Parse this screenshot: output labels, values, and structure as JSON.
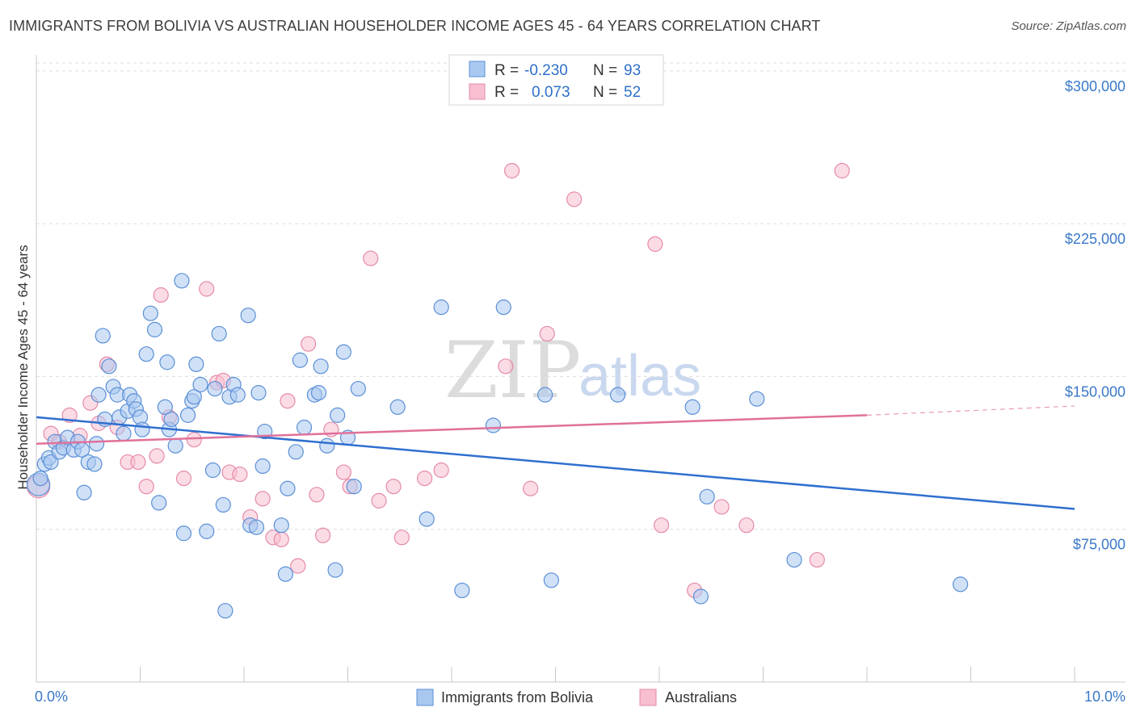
{
  "header": {
    "title": "IMMIGRANTS FROM BOLIVIA VS AUSTRALIAN HOUSEHOLDER INCOME AGES 45 - 64 YEARS CORRELATION CHART",
    "source": "Source: ZipAtlas.com"
  },
  "watermark": {
    "zip": "ZIP",
    "atlas": "atlas"
  },
  "legend_top": {
    "rows": [
      {
        "r_label": "R =",
        "r_value": "-0.230",
        "n_label": "N =",
        "n_value": "93"
      },
      {
        "r_label": "R =",
        "r_value": "0.073",
        "n_label": "N =",
        "n_value": "52"
      }
    ]
  },
  "legend_bottom": {
    "items": [
      {
        "label": "Immigrants from Bolivia"
      },
      {
        "label": "Australians"
      }
    ]
  },
  "colors": {
    "blue_fill": "#a9c8f0",
    "blue_stroke": "#5b8fd6",
    "blue_line": "#2f6fcf",
    "pink_fill": "#f7bfd0",
    "pink_stroke": "#e58aa8",
    "pink_line": "#e0709a",
    "tick_text": "#3a78c9",
    "grid": "#dddddd"
  },
  "chart_data": {
    "type": "scatter",
    "title": "IMMIGRANTS FROM BOLIVIA VS AUSTRALIAN HOUSEHOLDER INCOME AGES 45 - 64 YEARS CORRELATION CHART",
    "xlabel": "",
    "ylabel": "Householder Income Ages 45 - 64 years",
    "xlim": [
      0,
      10
    ],
    "ylim": [
      0,
      315000
    ],
    "x_tick_labels": [
      "0.0%",
      "10.0%"
    ],
    "y_ticks": [
      75000,
      150000,
      225000,
      300000
    ],
    "y_tick_labels": [
      "$75,000",
      "$150,000",
      "$225,000",
      "$300,000"
    ],
    "grid": true,
    "legend_position": "top-center",
    "series": [
      {
        "name": "Immigrants from Bolivia",
        "color": "#a9c8f0",
        "points": [
          [
            0.02,
            97000
          ],
          [
            0.04,
            100000
          ],
          [
            0.08,
            107000
          ],
          [
            0.12,
            110000
          ],
          [
            0.14,
            108000
          ],
          [
            0.18,
            118000
          ],
          [
            0.22,
            113000
          ],
          [
            0.26,
            115000
          ],
          [
            0.3,
            120000
          ],
          [
            0.36,
            114000
          ],
          [
            0.4,
            118000
          ],
          [
            0.44,
            114000
          ],
          [
            0.46,
            93000
          ],
          [
            0.5,
            108000
          ],
          [
            0.56,
            107000
          ],
          [
            0.58,
            117000
          ],
          [
            0.6,
            141000
          ],
          [
            0.64,
            170000
          ],
          [
            0.66,
            129000
          ],
          [
            0.7,
            155000
          ],
          [
            0.74,
            145000
          ],
          [
            0.78,
            141000
          ],
          [
            0.8,
            130000
          ],
          [
            0.84,
            122000
          ],
          [
            0.88,
            133000
          ],
          [
            0.9,
            141000
          ],
          [
            0.94,
            138000
          ],
          [
            0.96,
            134000
          ],
          [
            1.0,
            130000
          ],
          [
            1.02,
            124000
          ],
          [
            1.06,
            161000
          ],
          [
            1.1,
            181000
          ],
          [
            1.14,
            173000
          ],
          [
            1.18,
            88000
          ],
          [
            1.24,
            135000
          ],
          [
            1.26,
            157000
          ],
          [
            1.28,
            124000
          ],
          [
            1.3,
            129000
          ],
          [
            1.34,
            116000
          ],
          [
            1.4,
            197000
          ],
          [
            1.42,
            73000
          ],
          [
            1.46,
            131000
          ],
          [
            1.5,
            138000
          ],
          [
            1.52,
            140000
          ],
          [
            1.54,
            156000
          ],
          [
            1.58,
            146000
          ],
          [
            1.64,
            74000
          ],
          [
            1.7,
            104000
          ],
          [
            1.72,
            144000
          ],
          [
            1.76,
            171000
          ],
          [
            1.8,
            87000
          ],
          [
            1.82,
            35000
          ],
          [
            1.86,
            140000
          ],
          [
            1.9,
            146000
          ],
          [
            1.94,
            141000
          ],
          [
            2.04,
            180000
          ],
          [
            2.06,
            77000
          ],
          [
            2.12,
            76000
          ],
          [
            2.14,
            142000
          ],
          [
            2.18,
            106000
          ],
          [
            2.2,
            123000
          ],
          [
            2.36,
            77000
          ],
          [
            2.4,
            53000
          ],
          [
            2.42,
            95000
          ],
          [
            2.5,
            113000
          ],
          [
            2.54,
            158000
          ],
          [
            2.58,
            125000
          ],
          [
            2.68,
            141000
          ],
          [
            2.72,
            142000
          ],
          [
            2.74,
            155000
          ],
          [
            2.8,
            116000
          ],
          [
            2.88,
            55000
          ],
          [
            2.9,
            131000
          ],
          [
            2.96,
            162000
          ],
          [
            3.0,
            120000
          ],
          [
            3.06,
            96000
          ],
          [
            3.1,
            144000
          ],
          [
            3.48,
            135000
          ],
          [
            3.76,
            80000
          ],
          [
            3.9,
            184000
          ],
          [
            4.1,
            45000
          ],
          [
            4.4,
            126000
          ],
          [
            4.5,
            184000
          ],
          [
            4.9,
            141000
          ],
          [
            4.96,
            50000
          ],
          [
            5.6,
            141000
          ],
          [
            6.32,
            135000
          ],
          [
            6.4,
            42000
          ],
          [
            6.46,
            91000
          ],
          [
            6.94,
            139000
          ],
          [
            7.3,
            60000
          ],
          [
            8.9,
            48000
          ]
        ]
      },
      {
        "name": "Australians",
        "color": "#f7bfd0",
        "points": [
          [
            0.02,
            96000
          ],
          [
            0.14,
            122000
          ],
          [
            0.22,
            118000
          ],
          [
            0.32,
            131000
          ],
          [
            0.42,
            121000
          ],
          [
            0.52,
            137000
          ],
          [
            0.6,
            127000
          ],
          [
            0.68,
            156000
          ],
          [
            0.78,
            125000
          ],
          [
            0.88,
            108000
          ],
          [
            0.98,
            108000
          ],
          [
            1.06,
            96000
          ],
          [
            1.16,
            111000
          ],
          [
            1.2,
            190000
          ],
          [
            1.28,
            130000
          ],
          [
            1.42,
            100000
          ],
          [
            1.52,
            119000
          ],
          [
            1.64,
            193000
          ],
          [
            1.74,
            147000
          ],
          [
            1.8,
            148000
          ],
          [
            1.86,
            103000
          ],
          [
            1.96,
            102000
          ],
          [
            2.06,
            81000
          ],
          [
            2.18,
            90000
          ],
          [
            2.28,
            71000
          ],
          [
            2.36,
            70000
          ],
          [
            2.42,
            138000
          ],
          [
            2.52,
            57000
          ],
          [
            2.62,
            166000
          ],
          [
            2.7,
            92000
          ],
          [
            2.76,
            72000
          ],
          [
            2.84,
            124000
          ],
          [
            2.96,
            103000
          ],
          [
            3.02,
            96000
          ],
          [
            3.22,
            208000
          ],
          [
            3.3,
            89000
          ],
          [
            3.44,
            96000
          ],
          [
            3.52,
            71000
          ],
          [
            3.74,
            100000
          ],
          [
            3.9,
            104000
          ],
          [
            4.52,
            155000
          ],
          [
            4.58,
            251000
          ],
          [
            4.76,
            95000
          ],
          [
            4.92,
            171000
          ],
          [
            5.18,
            237000
          ],
          [
            5.96,
            215000
          ],
          [
            6.02,
            77000
          ],
          [
            6.34,
            45000
          ],
          [
            6.6,
            86000
          ],
          [
            6.84,
            77000
          ],
          [
            7.52,
            60000
          ],
          [
            7.76,
            251000
          ]
        ]
      }
    ],
    "trend_lines": [
      {
        "series": "Immigrants from Bolivia",
        "x": [
          0,
          10
        ],
        "y": [
          130000,
          85000
        ]
      },
      {
        "series": "Australians",
        "x": [
          0,
          8.0
        ],
        "y": [
          117000,
          131000
        ],
        "dashed_extension_to": [
          10,
          135500
        ]
      }
    ]
  }
}
